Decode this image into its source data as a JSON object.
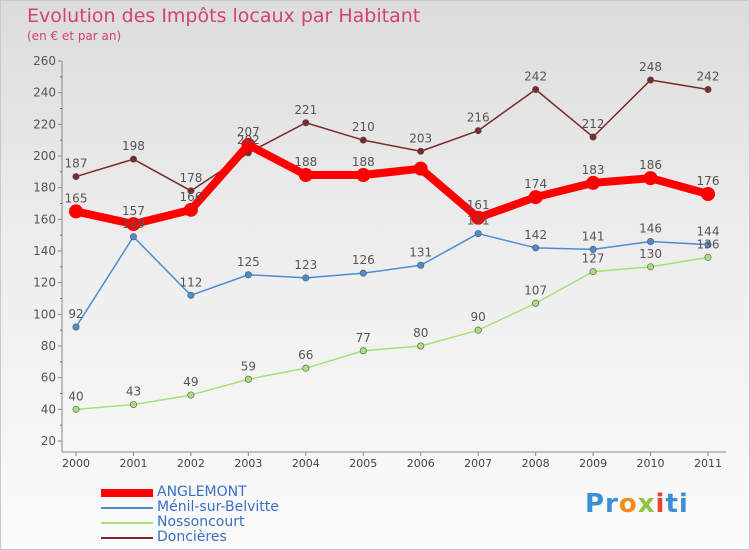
{
  "title": "Evolution des Impôts locaux par Habitant",
  "subtitle": "(en € et par an)",
  "logo": {
    "p1": "Pr",
    "p2": "o",
    "p3": "x",
    "p4": "i",
    "p5": "ti"
  },
  "chart_data": {
    "type": "line",
    "categories": [
      "2000",
      "2001",
      "2002",
      "2003",
      "2004",
      "2005",
      "2006",
      "2007",
      "2008",
      "2009",
      "2010",
      "2011"
    ],
    "ylim": [
      20,
      260
    ],
    "yticks": [
      20,
      40,
      60,
      80,
      100,
      120,
      140,
      160,
      180,
      200,
      220,
      240,
      260
    ],
    "grid": false,
    "legend_position": "bottom-left",
    "series": [
      {
        "name": "ANGLEMONT",
        "color": "#ff0000",
        "width": 8,
        "marker": 7,
        "values": [
          165,
          157,
          166,
          207,
          188,
          188,
          192,
          161,
          174,
          183,
          186,
          176
        ],
        "labels": [
          "165",
          "157",
          "166",
          "207",
          "188",
          "188",
          "",
          "161",
          "174",
          "183",
          "186",
          "176"
        ]
      },
      {
        "name": "Ménil-sur-Belvitte",
        "color": "#4b8dd2",
        "width": 1.5,
        "marker": 3.2,
        "values": [
          92,
          149,
          112,
          125,
          123,
          126,
          131,
          151,
          142,
          141,
          146,
          144
        ],
        "labels": [
          "92",
          "149",
          "112",
          "125",
          "123",
          "126",
          "131",
          "151",
          "142",
          "141",
          "146",
          "144"
        ]
      },
      {
        "name": "Nossoncourt",
        "color": "#a6e07a",
        "width": 1.5,
        "marker": 3.2,
        "values": [
          40,
          43,
          49,
          59,
          66,
          77,
          80,
          90,
          107,
          127,
          130,
          136
        ],
        "labels": [
          "40",
          "43",
          "49",
          "59",
          "66",
          "77",
          "80",
          "90",
          "107",
          "127",
          "130",
          "136"
        ]
      },
      {
        "name": "Doncières",
        "color": "#7a2a2a",
        "width": 1.5,
        "marker": 3.2,
        "values": [
          187,
          198,
          178,
          202,
          221,
          210,
          203,
          216,
          242,
          212,
          248,
          242
        ],
        "labels": [
          "187",
          "198",
          "178",
          "202",
          "221",
          "210",
          "203",
          "216",
          "242",
          "212",
          "248",
          "242"
        ]
      }
    ]
  }
}
